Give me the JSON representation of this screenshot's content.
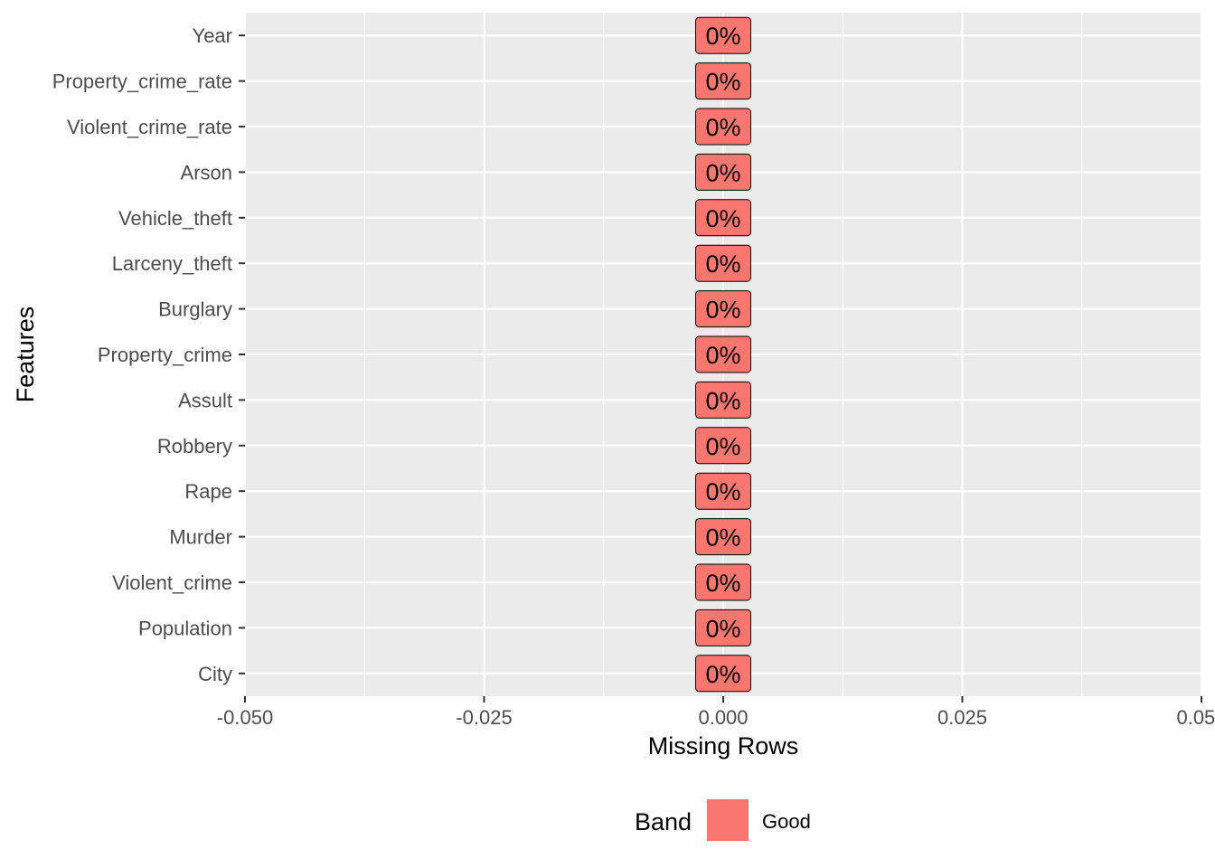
{
  "chart_data": {
    "type": "bar",
    "orientation": "horizontal",
    "categories": [
      "City",
      "Population",
      "Violent_crime",
      "Murder",
      "Rape",
      "Robbery",
      "Assult",
      "Property_crime",
      "Burglary",
      "Larceny_theft",
      "Vehicle_theft",
      "Arson",
      "Violent_crime_rate",
      "Property_crime_rate",
      "Year"
    ],
    "values": [
      0,
      0,
      0,
      0,
      0,
      0,
      0,
      0,
      0,
      0,
      0,
      0,
      0,
      0,
      0
    ],
    "data_labels": [
      "0%",
      "0%",
      "0%",
      "0%",
      "0%",
      "0%",
      "0%",
      "0%",
      "0%",
      "0%",
      "0%",
      "0%",
      "0%",
      "0%",
      "0%"
    ],
    "xlabel": "Missing Rows",
    "ylabel": "Features",
    "xlim": [
      -0.05,
      0.05
    ],
    "x_ticks": [
      -0.05,
      -0.025,
      0,
      0.025,
      0.05
    ],
    "x_tick_labels": [
      "-0.050",
      "-0.025",
      "0.000",
      "0.025",
      "0.050"
    ],
    "grid": true,
    "legend": {
      "title": "Band",
      "position": "bottom",
      "entries": [
        {
          "label": "Good",
          "color": "#f8766d"
        }
      ]
    },
    "colors": {
      "panel": "#ebebeb",
      "grid": "#ffffff",
      "fill": "#f8766d"
    }
  }
}
